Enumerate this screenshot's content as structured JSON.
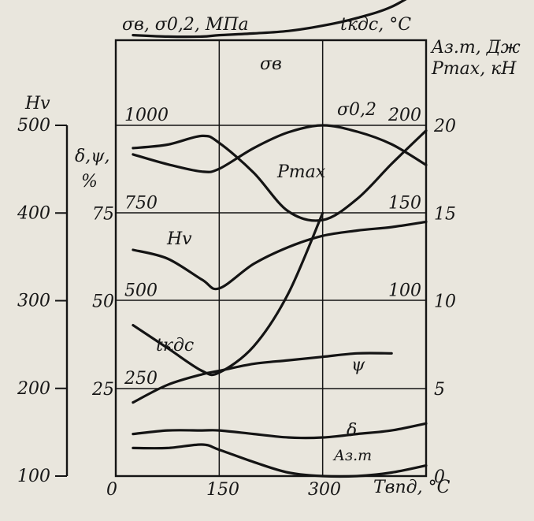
{
  "chart_data": {
    "type": "line",
    "title": "",
    "x_axis": {
      "label": "Tвпд, °C",
      "ticks": [
        "0",
        "150",
        "300"
      ],
      "range": [
        0,
        450
      ]
    },
    "y_axes": [
      {
        "id": "hv",
        "label": "Hv",
        "ticks": [
          "100",
          "200",
          "300",
          "400",
          "500"
        ],
        "range": [
          100,
          500
        ]
      },
      {
        "id": "elong",
        "label": "δ,ψ, %",
        "ticks": [
          "25",
          "50",
          "75"
        ],
        "range": [
          0,
          100
        ]
      },
      {
        "id": "stress",
        "label": "σв, σ0,2, МПа",
        "ticks": [
          "250",
          "500",
          "750",
          "1000"
        ],
        "range": [
          0,
          1000
        ]
      },
      {
        "id": "temp",
        "label": "tкдс, °C",
        "ticks": [
          "100",
          "150",
          "200"
        ],
        "range": [
          0,
          200
        ]
      },
      {
        "id": "energy",
        "label": "Aз.т, Дж",
        "range": [
          0,
          20
        ]
      },
      {
        "id": "force",
        "label": "Pmax, кН",
        "ticks": [
          "0",
          "5",
          "10",
          "15",
          "20"
        ],
        "range": [
          0,
          20
        ]
      }
    ],
    "grid": true,
    "series": [
      {
        "name": "σв",
        "axis": "stress",
        "x": [
          25,
          75,
          125,
          150,
          200,
          250,
          300,
          350,
          400,
          450
        ],
        "y": [
          1257,
          1253,
          1253,
          1257,
          1262,
          1269,
          1284,
          1306,
          1338,
          1395
        ]
      },
      {
        "name": "σ0,2",
        "axis": "stress",
        "x": [
          25,
          75,
          125,
          150,
          200,
          250,
          300,
          350,
          400,
          450
        ],
        "y": [
          917,
          889,
          868,
          876,
          935,
          980,
          1000,
          982,
          946,
          887
        ]
      },
      {
        "name": "Pmax",
        "axis": "force",
        "x": [
          25,
          75,
          125,
          150,
          200,
          250,
          300,
          350,
          400,
          450
        ],
        "y": [
          18.7,
          18.9,
          19.4,
          19.0,
          17.3,
          15.1,
          14.6,
          15.8,
          17.8,
          19.7
        ]
      },
      {
        "name": "Hv",
        "axis": "hv",
        "x": [
          25,
          75,
          125,
          150,
          200,
          250,
          300,
          350,
          400,
          450
        ],
        "y": [
          358,
          348,
          324,
          314,
          342,
          361,
          374,
          380,
          384,
          390
        ]
      },
      {
        "name": "tкдс",
        "axis": "temp",
        "x": [
          25,
          75,
          125,
          150,
          200,
          250,
          300
        ],
        "y": [
          86,
          73,
          60,
          59,
          74,
          104,
          150
        ]
      },
      {
        "name": "ψ",
        "axis": "elong",
        "x": [
          25,
          75,
          125,
          150,
          200,
          250,
          300,
          350,
          400
        ],
        "y": [
          21,
          26,
          29,
          30,
          32,
          33,
          34,
          35,
          35
        ]
      },
      {
        "name": "δ",
        "axis": "elong",
        "x": [
          25,
          75,
          125,
          150,
          200,
          250,
          300,
          350,
          400,
          450
        ],
        "y": [
          12,
          13,
          13,
          13,
          12,
          11,
          11,
          12,
          13,
          15
        ]
      },
      {
        "name": "Aз.т",
        "axis": "energy",
        "x": [
          25,
          75,
          125,
          150,
          200,
          250,
          300,
          350,
          400,
          450
        ],
        "y": [
          1.6,
          1.6,
          1.8,
          1.5,
          0.8,
          0.2,
          0.0,
          0.0,
          0.2,
          0.6
        ]
      }
    ]
  }
}
